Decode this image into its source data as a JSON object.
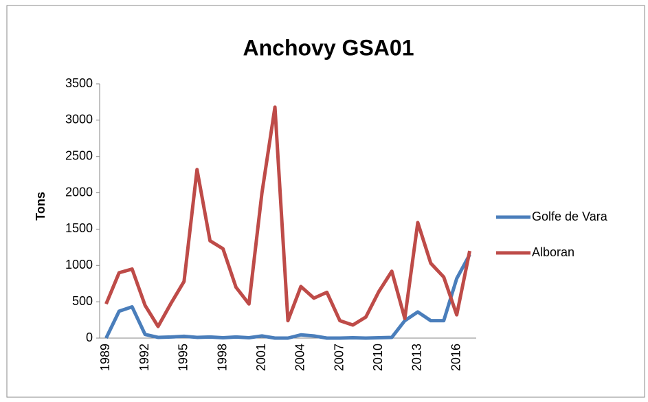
{
  "chart_data": {
    "type": "line",
    "title": "Anchovy GSA01",
    "y_label": "Tons",
    "categories": [
      "1989",
      null,
      null,
      "1992",
      null,
      null,
      "1995",
      null,
      null,
      "1998",
      null,
      null,
      "2001",
      null,
      null,
      "2004",
      null,
      null,
      "2007",
      null,
      null,
      "2010",
      null,
      null,
      "2013",
      null,
      null,
      "2016",
      null
    ],
    "series": [
      {
        "name": "Golfe de Vara",
        "color": "#4a7ebb",
        "values": [
          0,
          370,
          430,
          50,
          10,
          15,
          25,
          10,
          15,
          5,
          15,
          5,
          30,
          0,
          0,
          45,
          30,
          0,
          0,
          5,
          0,
          5,
          10,
          240,
          360,
          240,
          240,
          820,
          1150
        ]
      },
      {
        "name": "Alboran",
        "color": "#be4b48",
        "values": [
          470,
          900,
          950,
          450,
          160,
          480,
          780,
          2320,
          1340,
          1230,
          700,
          470,
          2000,
          3180,
          240,
          710,
          550,
          630,
          240,
          180,
          290,
          640,
          920,
          270,
          1590,
          1030,
          840,
          320,
          1200
        ]
      }
    ],
    "ylim": [
      0,
      3500
    ],
    "yticks": [
      0,
      500,
      1000,
      1500,
      2000,
      2500,
      3000,
      3500
    ],
    "grid": false,
    "legend": "right"
  }
}
